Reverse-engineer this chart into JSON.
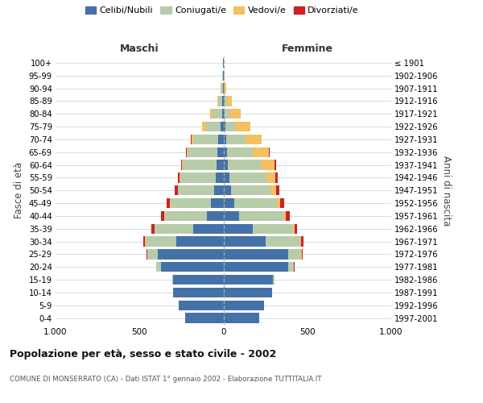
{
  "age_groups": [
    "0-4",
    "5-9",
    "10-14",
    "15-19",
    "20-24",
    "25-29",
    "30-34",
    "35-39",
    "40-44",
    "45-49",
    "50-54",
    "55-59",
    "60-64",
    "65-69",
    "70-74",
    "75-79",
    "80-84",
    "85-89",
    "90-94",
    "95-99",
    "100+"
  ],
  "birth_years": [
    "1997-2001",
    "1992-1996",
    "1987-1991",
    "1982-1986",
    "1977-1981",
    "1972-1976",
    "1967-1971",
    "1962-1966",
    "1957-1961",
    "1952-1956",
    "1947-1951",
    "1942-1946",
    "1937-1941",
    "1932-1936",
    "1927-1931",
    "1922-1926",
    "1917-1921",
    "1912-1916",
    "1907-1911",
    "1902-1906",
    "≤ 1901"
  ],
  "males_celibi": [
    230,
    265,
    300,
    300,
    370,
    390,
    280,
    180,
    100,
    75,
    55,
    45,
    40,
    35,
    30,
    15,
    8,
    5,
    4,
    2,
    2
  ],
  "males_coniugati": [
    0,
    0,
    2,
    5,
    30,
    65,
    185,
    230,
    250,
    240,
    215,
    210,
    200,
    180,
    150,
    90,
    55,
    25,
    8,
    3,
    2
  ],
  "males_vedovi": [
    0,
    0,
    0,
    0,
    0,
    0,
    2,
    2,
    2,
    2,
    3,
    5,
    5,
    5,
    10,
    20,
    15,
    8,
    3,
    1,
    0
  ],
  "males_divorziati": [
    0,
    0,
    0,
    0,
    2,
    3,
    10,
    15,
    18,
    20,
    15,
    10,
    8,
    5,
    3,
    2,
    0,
    0,
    0,
    0,
    0
  ],
  "females_nubili": [
    215,
    240,
    290,
    295,
    385,
    385,
    250,
    175,
    95,
    65,
    45,
    35,
    28,
    22,
    18,
    10,
    8,
    5,
    4,
    2,
    2
  ],
  "females_coniugate": [
    0,
    0,
    2,
    10,
    35,
    80,
    210,
    240,
    265,
    255,
    235,
    220,
    195,
    155,
    115,
    65,
    35,
    18,
    5,
    2,
    1
  ],
  "females_vedove": [
    0,
    0,
    0,
    0,
    2,
    3,
    5,
    8,
    12,
    20,
    35,
    55,
    80,
    95,
    95,
    85,
    60,
    28,
    8,
    3,
    1
  ],
  "females_divorziate": [
    0,
    0,
    0,
    0,
    2,
    3,
    10,
    18,
    22,
    22,
    18,
    12,
    10,
    5,
    2,
    2,
    0,
    0,
    0,
    0,
    0
  ],
  "color_celibi": "#4472a8",
  "color_coniugati": "#b8ccaa",
  "color_vedovi": "#f5c060",
  "color_divorziati": "#cc2222",
  "legend_labels": [
    "Celibi/Nubili",
    "Coniugati/e",
    "Vedovi/e",
    "Divorziati/e"
  ],
  "title": "Popolazione per età, sesso e stato civile - 2002",
  "subtitle": "COMUNE DI MONSERRATO (CA) - Dati ISTAT 1° gennaio 2002 - Elaborazione TUTTITALIA.IT",
  "ylabel_left": "Fasce di età",
  "ylabel_right": "Anni di nascita",
  "maschi_label": "Maschi",
  "femmine_label": "Femmine",
  "xlim": 1000,
  "bg_color": "#ffffff",
  "grid_color": "#cccccc"
}
